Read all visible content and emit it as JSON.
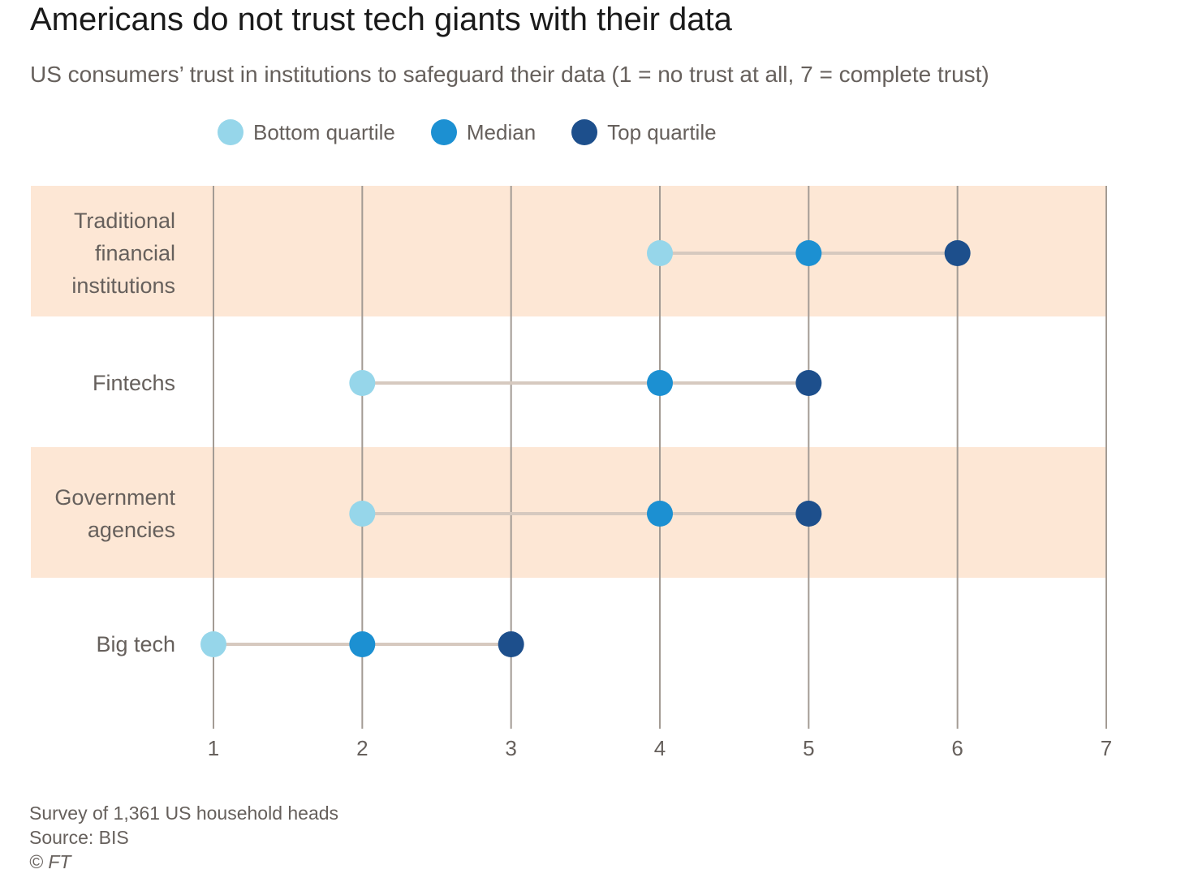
{
  "chart_data": {
    "type": "scatter",
    "title": "Americans do not trust tech giants with their data",
    "subtitle": "US consumers’ trust in institutions to safeguard their data (1 = no trust at all, 7 = complete trust)",
    "xlim": [
      1,
      7
    ],
    "xticks": [
      "1",
      "2",
      "3",
      "4",
      "5",
      "6",
      "7"
    ],
    "grid": true,
    "legend_position": "top",
    "categories": [
      [
        "Traditional",
        "financial",
        "institutions"
      ],
      [
        "Fintechs"
      ],
      [
        "Government",
        "agencies"
      ],
      [
        "Big tech"
      ]
    ],
    "series": [
      {
        "name": "Bottom quartile",
        "color": "#96d6ea",
        "values": [
          4,
          2,
          2,
          1
        ]
      },
      {
        "name": "Median",
        "color": "#1c90d2",
        "values": [
          5,
          4,
          4,
          2
        ]
      },
      {
        "name": "Top quartile",
        "color": "#1d4f8c",
        "values": [
          6,
          5,
          5,
          3
        ]
      }
    ],
    "band_color": "#fde7d5",
    "connector_color": "#d6c9bf",
    "gridline_color": "#a39b94"
  },
  "footer": {
    "note": "Survey of 1,361 US household heads",
    "source": "Source: BIS",
    "credit": "© FT"
  }
}
